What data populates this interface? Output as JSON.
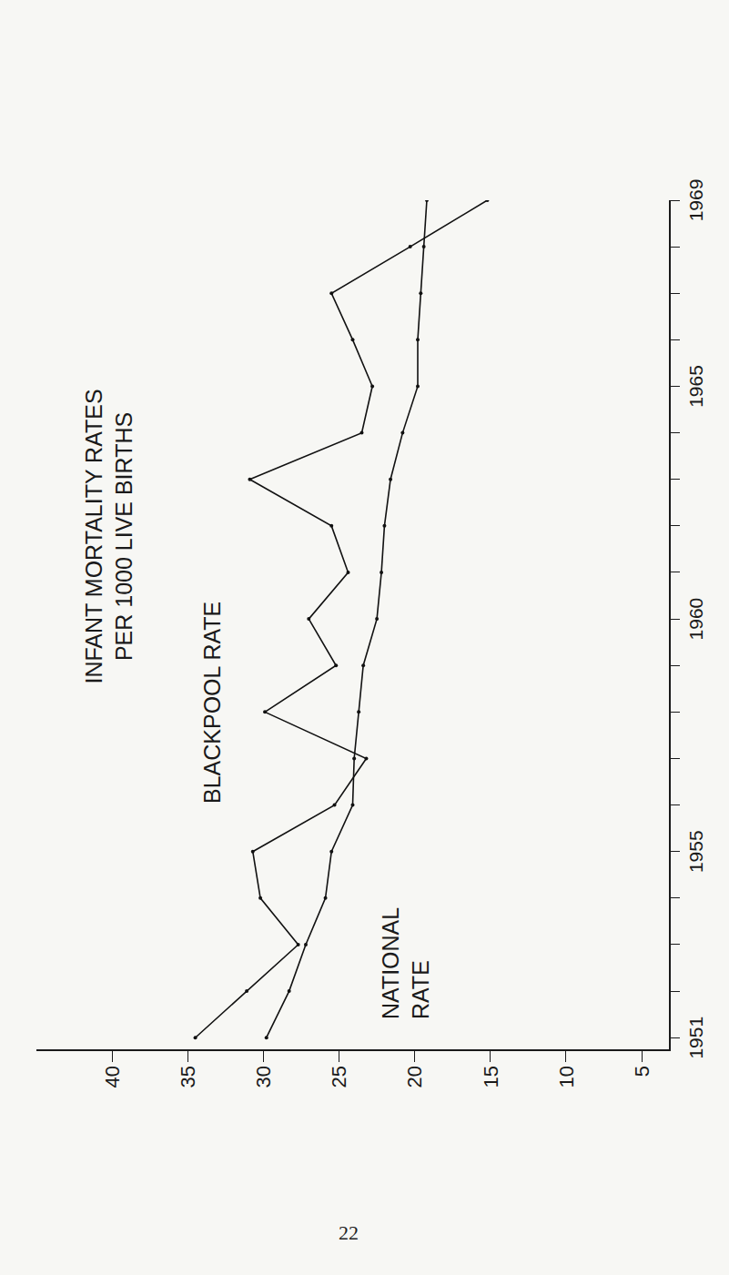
{
  "chart_data": {
    "type": "line",
    "title": "INFANT MORTALITY RATES",
    "subtitle": "PER 1000 LIVE BIRTHS",
    "x": [
      1951,
      1952,
      1953,
      1954,
      1955,
      1956,
      1957,
      1958,
      1959,
      1960,
      1961,
      1962,
      1963,
      1964,
      1965,
      1966,
      1967,
      1968,
      1969
    ],
    "series": [
      {
        "color": "#111111",
        "marker": "circle",
        "line_style": "solid",
        "values": [
          34.5,
          31.1,
          27.7,
          30.2,
          30.7,
          25.3,
          23.2,
          29.9,
          25.2,
          27.0,
          24.4,
          25.5,
          30.9,
          23.5,
          22.8,
          24.1,
          25.5,
          20.3,
          15.2
        ]
      },
      {
        "color": "#111111",
        "marker": "circle",
        "line_style": "solid",
        "values": [
          29.8,
          28.3,
          27.2,
          25.9,
          25.5,
          24.1,
          24.0,
          23.7,
          23.4,
          22.5,
          22.2,
          22.0,
          21.6,
          20.8,
          19.8,
          19.8,
          19.6,
          19.4,
          19.2
        ]
      }
    ],
    "annotations": [
      {
        "lines": [
          "BLACKPOOL RATE"
        ],
        "x": 1958.2,
        "y": 33.4
      },
      {
        "lines": [
          "NATIONAL",
          "RATE"
        ],
        "x": 1952.6,
        "y": 20.6
      }
    ],
    "xlim": [
      1950.75,
      1969
    ],
    "xticks": [
      1951,
      1955,
      1960,
      1965,
      1969
    ],
    "ylim": [
      3.2,
      45
    ],
    "yticks": [
      5,
      10,
      15,
      20,
      25,
      30,
      35,
      40
    ],
    "grid": false,
    "page_number": "22"
  }
}
